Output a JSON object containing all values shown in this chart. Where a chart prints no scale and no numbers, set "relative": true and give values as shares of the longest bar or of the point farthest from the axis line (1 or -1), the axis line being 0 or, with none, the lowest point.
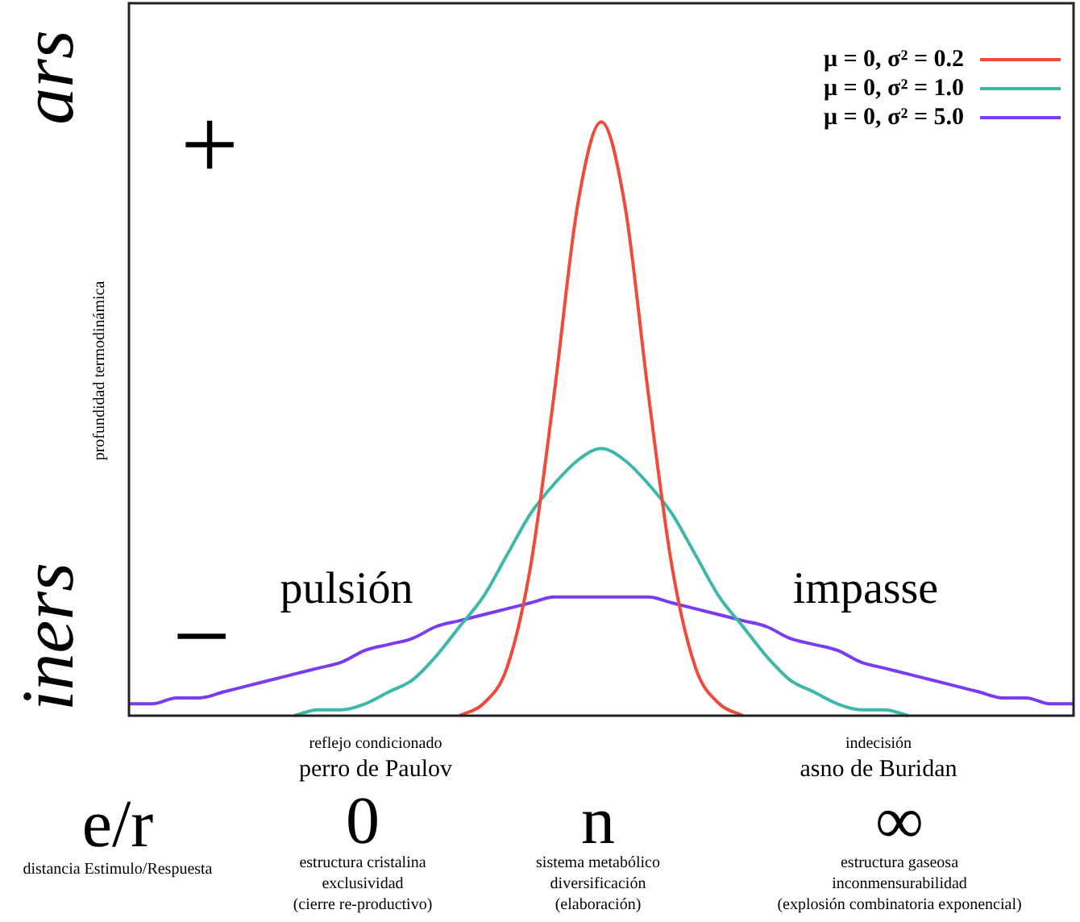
{
  "chart_data": {
    "type": "line",
    "relative": true,
    "ylabel": "profundidad termodinámica",
    "legend": "top right",
    "marker": "none",
    "line_style": "solid",
    "grid": false,
    "categories": [
      null,
      null,
      null,
      null,
      null,
      null,
      null,
      null,
      null,
      null,
      null,
      null,
      null,
      null,
      null,
      null,
      null,
      null,
      null,
      null,
      null,
      null,
      null,
      null,
      null,
      null,
      null,
      null,
      null,
      null,
      null,
      null,
      null,
      null,
      null,
      null,
      null,
      null,
      null,
      null,
      null
    ],
    "series": [
      {
        "name": "μ = 0, σ² = 0.2",
        "color": "#f04a3a",
        "values": [
          null,
          null,
          null,
          null,
          null,
          null,
          null,
          null,
          null,
          null,
          null,
          null,
          null,
          null,
          0,
          0.02,
          0.08,
          0.25,
          0.54,
          0.86,
          1,
          0.86,
          0.54,
          0.25,
          0.08,
          0.02,
          0,
          null,
          null,
          null,
          null,
          null,
          null,
          null,
          null,
          null,
          null,
          null,
          null,
          null,
          null
        ]
      },
      {
        "name": "μ = 0, σ² = 1.0",
        "color": "#3cb8a8",
        "values": [
          null,
          null,
          null,
          null,
          null,
          null,
          null,
          0,
          0.01,
          0.01,
          0.02,
          0.04,
          0.06,
          0.1,
          0.15,
          0.2,
          0.27,
          0.34,
          0.39,
          0.43,
          0.45,
          0.43,
          0.39,
          0.34,
          0.27,
          0.2,
          0.15,
          0.1,
          0.06,
          0.04,
          0.02,
          0.01,
          0.01,
          0,
          null,
          null,
          null,
          null,
          null,
          null,
          null
        ]
      },
      {
        "name": "μ = 0, σ² = 5.0",
        "color": "#7a3cf0",
        "values": [
          0.02,
          0.02,
          0.03,
          0.03,
          0.04,
          0.05,
          0.06,
          0.07,
          0.08,
          0.09,
          0.11,
          0.12,
          0.13,
          0.15,
          0.16,
          0.17,
          0.18,
          0.19,
          0.2,
          0.2,
          0.2,
          0.2,
          0.2,
          0.19,
          0.18,
          0.17,
          0.16,
          0.15,
          0.13,
          0.12,
          0.11,
          0.09,
          0.08,
          0.07,
          0.06,
          0.05,
          0.04,
          0.03,
          0.03,
          0.02,
          0.02
        ]
      }
    ],
    "annotations": [
      "ars",
      "iners",
      "+",
      "−",
      "pulsión",
      "impasse",
      "reflejo condicionado",
      "perro de Paulov",
      "indecisión",
      "asno de Buridan",
      "e/r",
      "distancia Estimulo/Respuesta",
      "0",
      "estructura cristalina",
      "exclusividad",
      "(cierre re-productivo)",
      "n",
      "sistema metabólico",
      "diversificación",
      "(elaboración)",
      "∞",
      "estructura gaseosa",
      "inconmensurabilidad",
      "(explosión combinatoria exponencial)"
    ]
  }
}
